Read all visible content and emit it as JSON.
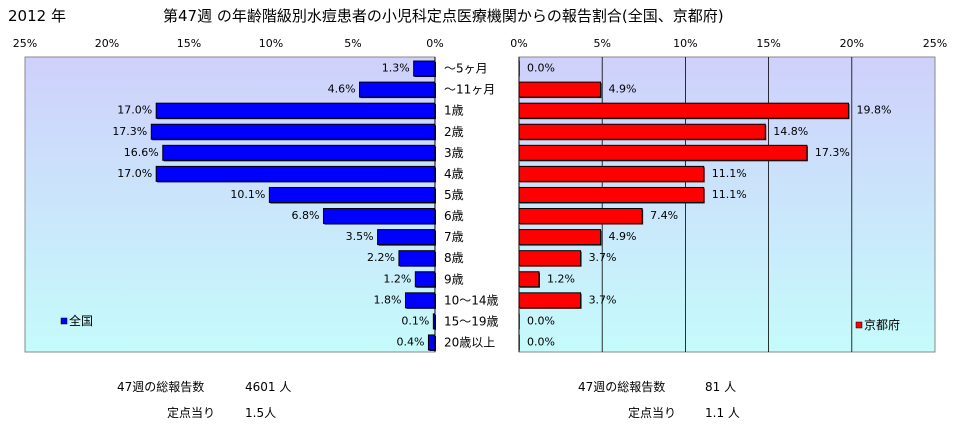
{
  "header": {
    "year": "2012 年",
    "title": "第47週 の年齢階級別水痘患者の小児科定点医療機関からの報告割合(全国、京都府)"
  },
  "chart_data": [
    {
      "type": "bar",
      "orientation": "horizontal",
      "direction": "right-to-left",
      "legend": "全国",
      "legend_position": "bottom-left",
      "categories": [
        "～5ヶ月",
        "～11ヶ月",
        "1歳",
        "2歳",
        "3歳",
        "4歳",
        "5歳",
        "6歳",
        "7歳",
        "8歳",
        "9歳",
        "10～14歳",
        "15～19歳",
        "20歳以上"
      ],
      "values": [
        1.3,
        4.6,
        17.0,
        17.3,
        16.6,
        17.0,
        10.1,
        6.8,
        3.5,
        2.2,
        1.2,
        1.8,
        0.1,
        0.4
      ],
      "value_labels": [
        "1.3%",
        "4.6%",
        "17.0%",
        "17.3%",
        "16.6%",
        "17.0%",
        "10.1%",
        "6.8%",
        "3.5%",
        "2.2%",
        "1.2%",
        "1.8%",
        "0.1%",
        "0.4%"
      ],
      "xlim": [
        0,
        25
      ],
      "ticks": [
        "25%",
        "20%",
        "15%",
        "10%",
        "5%",
        "0%"
      ],
      "color": "#0000ff",
      "grid": false
    },
    {
      "type": "bar",
      "orientation": "horizontal",
      "direction": "left-to-right",
      "legend": "京都府",
      "legend_position": "bottom-right",
      "categories": [
        "～5ヶ月",
        "～11ヶ月",
        "1歳",
        "2歳",
        "3歳",
        "4歳",
        "5歳",
        "6歳",
        "7歳",
        "8歳",
        "9歳",
        "10～14歳",
        "15～19歳",
        "20歳以上"
      ],
      "values": [
        0.0,
        4.9,
        19.8,
        14.8,
        17.3,
        11.1,
        11.1,
        7.4,
        4.9,
        3.7,
        1.2,
        3.7,
        0.0,
        0.0
      ],
      "value_labels": [
        "0.0%",
        "4.9%",
        "19.8%",
        "14.8%",
        "17.3%",
        "11.1%",
        "11.1%",
        "7.4%",
        "4.9%",
        "3.7%",
        "1.2%",
        "3.7%",
        "0.0%",
        "0.0%"
      ],
      "xlim": [
        0,
        25
      ],
      "ticks": [
        "0%",
        "5%",
        "10%",
        "15%",
        "20%",
        "25%"
      ],
      "color": "#ff0000",
      "grid": true
    }
  ],
  "footer": {
    "left": {
      "total_label": "47週の総報告数",
      "total_value": "4601 人",
      "per_label": "定点当り",
      "per_value": "1.5人"
    },
    "right": {
      "total_label": "47週の総報告数",
      "total_value": "81 人",
      "per_label": "定点当り",
      "per_value": "1.1 人"
    }
  },
  "colors": {
    "plot_top": "#cfd0fb",
    "plot_bottom": "#c5fbfb"
  }
}
